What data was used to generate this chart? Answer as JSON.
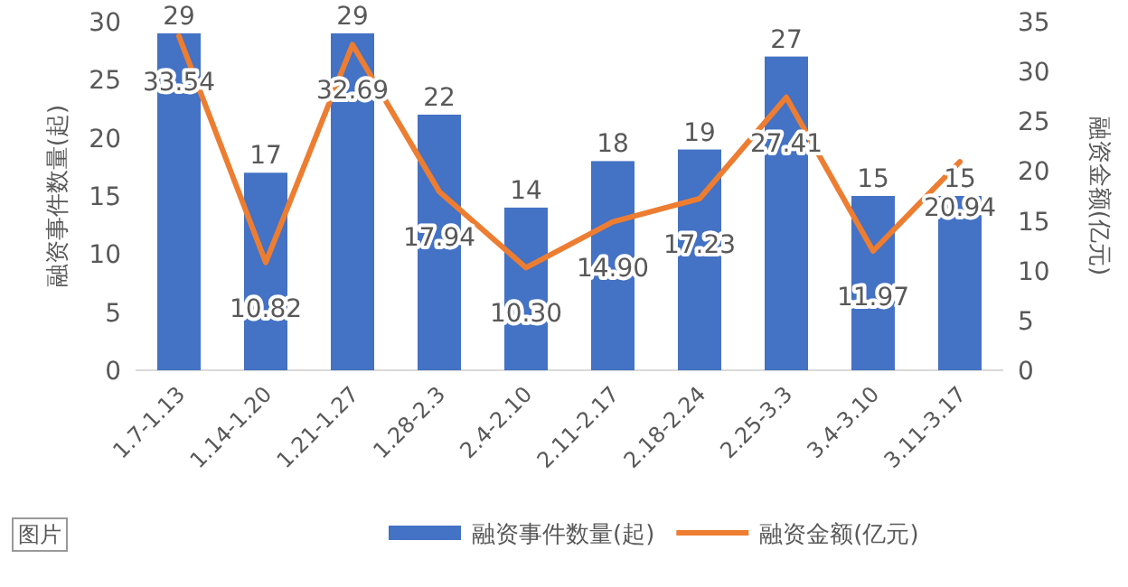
{
  "chart_data": {
    "type": "bar",
    "categories": [
      "1.7-1.13",
      "1.14-1.20",
      "1.21-1.27",
      "1.28-2.3",
      "2.4-2.10",
      "2.11-2.17",
      "2.18-2.24",
      "2.25-3.3",
      "3.4-3.10",
      "3.11-3.17"
    ],
    "series": [
      {
        "name": "融资事件数量(起)",
        "color": "#4472c4",
        "values": [
          29,
          17,
          29,
          22,
          14,
          18,
          19,
          27,
          15,
          15
        ]
      },
      {
        "name": "融资金额(亿元)",
        "type": "line",
        "axis": "y2",
        "color": "#ed7d31",
        "values": [
          33.54,
          10.82,
          32.69,
          17.94,
          10.3,
          14.9,
          17.23,
          27.41,
          11.97,
          20.94
        ],
        "value_labels": [
          "33.54",
          "10.82",
          "32.69",
          "17.94",
          "10.30",
          "14.90",
          "17.23",
          "27.41",
          "11.97",
          "20.94"
        ]
      }
    ],
    "ylabel": "融资事件数量(起)",
    "y2label": "融资金额(亿元)",
    "ylim": [
      0,
      30
    ],
    "yticks": [
      0,
      5,
      10,
      15,
      20,
      25,
      30
    ],
    "y2lim": [
      0,
      35
    ],
    "y2ticks": [
      0,
      5,
      10,
      15,
      20,
      25,
      30,
      35
    ],
    "data_labels": true,
    "legend": "bottom",
    "annotations": [
      "图片"
    ]
  }
}
